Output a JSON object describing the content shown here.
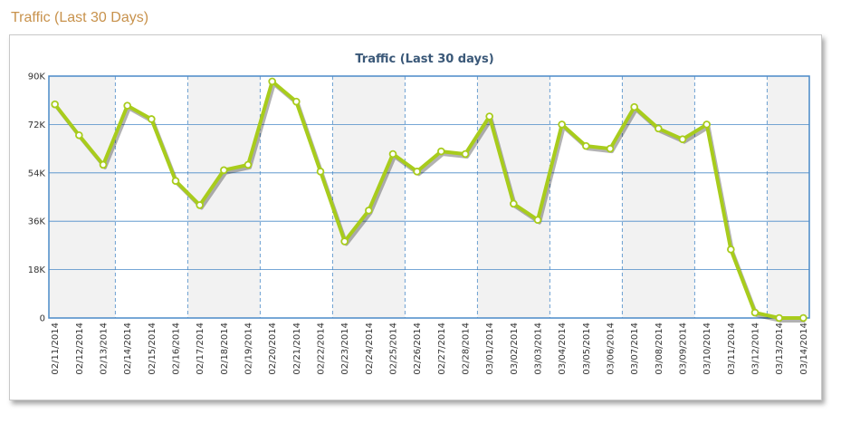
{
  "page": {
    "title": "Traffic (Last 30 Days)"
  },
  "colors": {
    "line": "#a8cc1c",
    "grid": "#4a8ac8",
    "band": "#f2f2f2",
    "title": "#3a5878",
    "heading": "#c8924c"
  },
  "chart_data": {
    "type": "line",
    "title": "Traffic (Last 30 days)",
    "xlabel": "",
    "ylabel": "",
    "ylim": [
      0,
      90000
    ],
    "yticks": [
      {
        "value": 0,
        "label": "0"
      },
      {
        "value": 18000,
        "label": "18K"
      },
      {
        "value": 36000,
        "label": "36K"
      },
      {
        "value": 54000,
        "label": "54K"
      },
      {
        "value": 72000,
        "label": "72K"
      },
      {
        "value": 90000,
        "label": "90K"
      }
    ],
    "grid": true,
    "legend": "none",
    "categories": [
      "02/11/2014",
      "02/12/2014",
      "02/13/2014",
      "02/14/2014",
      "02/15/2014",
      "02/16/2014",
      "02/17/2014",
      "02/18/2014",
      "02/19/2014",
      "02/20/2014",
      "02/21/2014",
      "02/22/2014",
      "02/23/2014",
      "02/24/2014",
      "02/25/2014",
      "02/26/2014",
      "02/27/2014",
      "02/28/2014",
      "03/01/2014",
      "03/02/2014",
      "03/03/2014",
      "03/04/2014",
      "03/05/2014",
      "03/06/2014",
      "03/07/2014",
      "03/08/2014",
      "03/09/2014",
      "03/10/2014",
      "03/11/2014",
      "03/12/2014",
      "03/13/2014",
      "03/14/2014"
    ],
    "series": [
      {
        "values": [
          79500,
          68000,
          57000,
          79000,
          74000,
          51000,
          42000,
          55000,
          57000,
          88000,
          80500,
          54500,
          28500,
          40000,
          61000,
          54500,
          62000,
          61000,
          75000,
          42500,
          36500,
          72000,
          64000,
          63000,
          78500,
          70500,
          66500,
          72000,
          25500,
          2000,
          0,
          0
        ]
      }
    ]
  }
}
